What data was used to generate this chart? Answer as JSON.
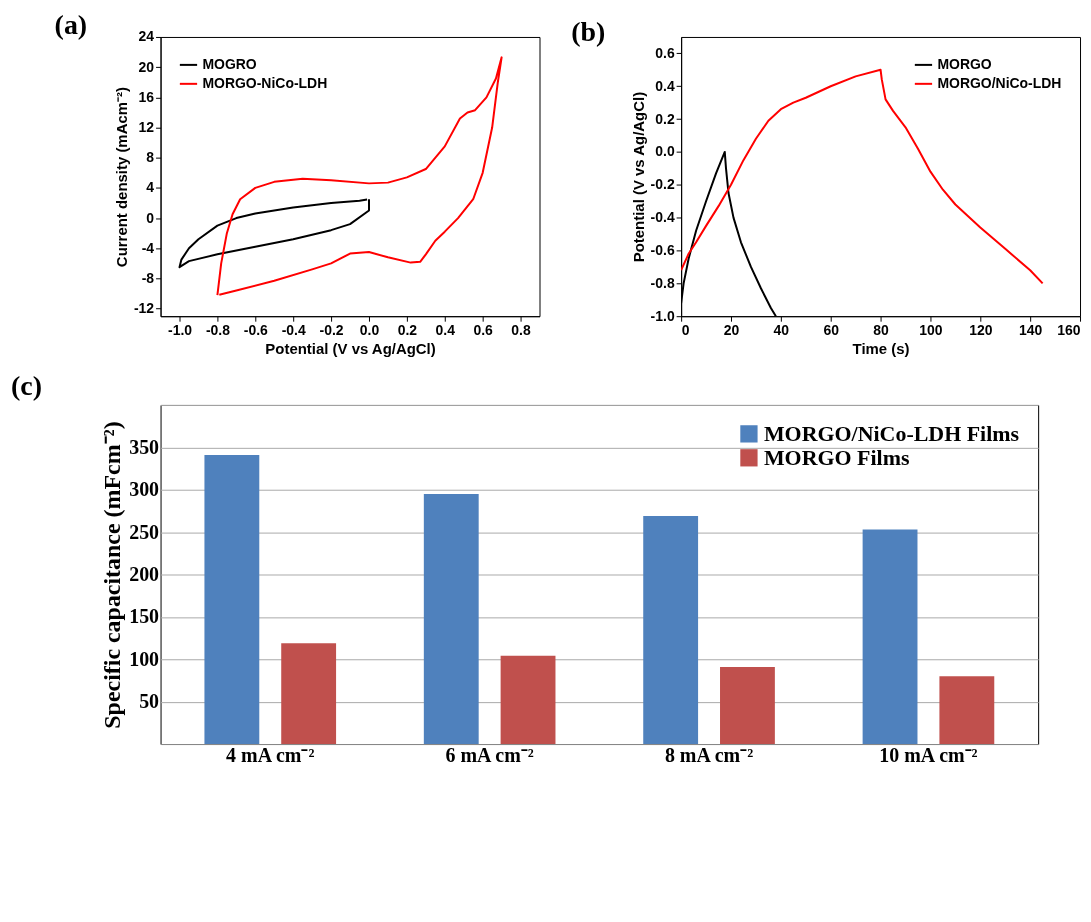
{
  "chart_data": [
    {
      "type": "line",
      "title": "(a)",
      "xlabel": "Potential (V vs Ag/AgCl)",
      "ylabel": "Current density (mAcm⁻²)",
      "legend": "top left",
      "grid": false,
      "xlim": [
        -1.1,
        0.9
      ],
      "xticks": [
        {
          "value": -1.0,
          "label": "-1.0"
        },
        {
          "value": -0.8,
          "label": "-0.8"
        },
        {
          "value": -0.6,
          "label": "-0.6"
        },
        {
          "value": -0.4,
          "label": "-0.4"
        },
        {
          "value": -0.2,
          "label": "-0.2"
        },
        {
          "value": 0.0,
          "label": "0.0"
        },
        {
          "value": 0.2,
          "label": "0.2"
        },
        {
          "value": 0.4,
          "label": "0.4"
        },
        {
          "value": 0.6,
          "label": "0.6"
        },
        {
          "value": 0.8,
          "label": "0.8"
        }
      ],
      "ylim": [
        -13,
        24
      ],
      "yticks": [
        -12,
        -8,
        -4,
        0,
        4,
        8,
        12,
        16,
        20,
        24
      ],
      "series": [
        {
          "name": "MOGRO",
          "color": "#000000",
          "x": [
            0,
            0,
            -0.1,
            -0.2,
            -0.4,
            -0.6,
            -0.8,
            -0.95,
            -1.0,
            -0.99,
            -0.95,
            -0.9,
            -0.8,
            -0.7,
            -0.6,
            -0.4,
            -0.2,
            -0.05,
            -0.01
          ],
          "values": [
            2.5,
            1.0,
            -0.8,
            -1.6,
            -2.8,
            -3.8,
            -4.8,
            -5.7,
            -6.5,
            -5.5,
            -4.0,
            -2.8,
            -1.0,
            0.0,
            0.6,
            1.4,
            2.0,
            2.3,
            2.45
          ]
        },
        {
          "name": "MORGO-NiCo-LDH",
          "color": "#ff0000",
          "x": [
            -0.8,
            -0.78,
            -0.75,
            -0.72,
            -0.68,
            -0.6,
            -0.5,
            -0.35,
            -0.2,
            0.0,
            0.1,
            0.2,
            0.3,
            0.4,
            0.48,
            0.52,
            0.56,
            0.62,
            0.67,
            0.7,
            0.68,
            0.65,
            0.6,
            0.55,
            0.47,
            0.4,
            0.35,
            0.3,
            0.27,
            0.22,
            0.1,
            0.0,
            -0.1,
            -0.2,
            -0.3,
            -0.5,
            -0.7,
            -0.79
          ],
          "values": [
            -10.2,
            -6.0,
            -2.0,
            0.5,
            2.5,
            4.0,
            4.8,
            5.2,
            5.0,
            4.6,
            4.7,
            5.4,
            6.5,
            9.5,
            13.2,
            14.0,
            14.3,
            16.0,
            18.5,
            21.3,
            18.0,
            12.0,
            6.0,
            2.5,
            0.0,
            -1.8,
            -3.0,
            -4.8,
            -5.8,
            -5.9,
            -5.2,
            -4.5,
            -4.7,
            -6.0,
            -6.8,
            -8.3,
            -9.6,
            -10.15
          ]
        }
      ]
    },
    {
      "type": "line",
      "title": "(b)",
      "xlabel": "Time (s)",
      "ylabel": "Potential (V vs Ag/AgCl)",
      "legend": "top right",
      "grid": false,
      "xlim": [
        0,
        160
      ],
      "xticks": [
        0,
        20,
        40,
        60,
        80,
        100,
        120,
        140,
        160
      ],
      "ylim": [
        -1.0,
        0.7
      ],
      "yticks": [
        {
          "value": -1.0,
          "label": "-1.0"
        },
        -0.8,
        -0.6,
        -0.4,
        -0.2,
        {
          "value": 0.0,
          "label": "0.0"
        },
        0.2,
        0.4,
        0.6
      ],
      "series": [
        {
          "name": "MORGO",
          "color": "#000000",
          "x": [
            0,
            1,
            3,
            6,
            10,
            14,
            17.5,
            18,
            19,
            21,
            24,
            28,
            32,
            36,
            38
          ],
          "values": [
            -0.92,
            -0.8,
            -0.65,
            -0.48,
            -0.3,
            -0.13,
            0.0,
            -0.1,
            -0.25,
            -0.4,
            -0.55,
            -0.7,
            -0.83,
            -0.95,
            -1.0
          ]
        },
        {
          "name": "MORGO/NiCo-LDH",
          "color": "#ff0000",
          "x": [
            0,
            3,
            6,
            10,
            15,
            20,
            25,
            30,
            35,
            40,
            45,
            50,
            60,
            70,
            80,
            80.5,
            82,
            85,
            90,
            95,
            100,
            105,
            110,
            120,
            130,
            140,
            145
          ],
          "values": [
            -0.72,
            -0.62,
            -0.55,
            -0.45,
            -0.33,
            -0.2,
            -0.05,
            0.08,
            0.19,
            0.26,
            0.3,
            0.33,
            0.4,
            0.46,
            0.5,
            0.44,
            0.32,
            0.25,
            0.15,
            0.02,
            -0.12,
            -0.23,
            -0.32,
            -0.46,
            -0.59,
            -0.72,
            -0.8
          ]
        }
      ]
    },
    {
      "type": "bar",
      "title": "(c)",
      "ylabel": "Specific capacitance (mFcm⁻²)",
      "legend": "top right",
      "grid": "y",
      "categories": [
        "4 mA cm⁻²",
        "6 mA cm⁻²",
        "8 mA cm⁻²",
        "10 mA cm⁻²"
      ],
      "ylim": [
        0,
        400
      ],
      "yticks": [
        {
          "value": 0,
          "label": null
        },
        50,
        100,
        150,
        200,
        250,
        300,
        350,
        {
          "value": 400,
          "label": null
        }
      ],
      "series": [
        {
          "name": "MORGO/NiCo-LDH Films",
          "color": "#4f81bd",
          "values": [
            341,
            295,
            269,
            253
          ]
        },
        {
          "name": "MORGO Films",
          "color": "#c0504d",
          "values": [
            119,
            104,
            91,
            80
          ]
        }
      ]
    }
  ]
}
